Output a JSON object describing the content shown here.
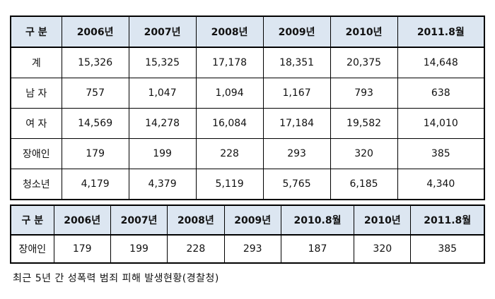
{
  "table1": {
    "headers": [
      "구 분",
      "2006년",
      "2007년",
      "2008년",
      "2009년",
      "2010년",
      "2011.8월"
    ],
    "rows": [
      [
        "계",
        "15,326",
        "15,325",
        "17,178",
        "18,351",
        "20,375",
        "14,648"
      ],
      [
        "남 자",
        "757",
        "1,047",
        "1,094",
        "1,167",
        "793",
        "638"
      ],
      [
        "여 자",
        "14,569",
        "14,278",
        "16,084",
        "17,184",
        "19,582",
        "14,010"
      ],
      [
        "장애인",
        "179",
        "199",
        "228",
        "293",
        "320",
        "385"
      ],
      [
        "청소년",
        "4,179",
        "4,379",
        "5,119",
        "5,765",
        "6,185",
        "4,340"
      ]
    ]
  },
  "table2": {
    "headers": [
      "구 분",
      "2006년",
      "2007년",
      "2008년",
      "2009년",
      "2010.8월",
      "2010년",
      "2011.8월"
    ],
    "rows": [
      [
        "장애인",
        "179",
        "199",
        "228",
        "293",
        "187",
        "320",
        "385"
      ]
    ]
  },
  "caption": "최근 5년 간 성폭력 범죄 피해 발생현황(경찰청)",
  "colors": {
    "header_bg": "#dce6f1",
    "border": "#000000"
  }
}
